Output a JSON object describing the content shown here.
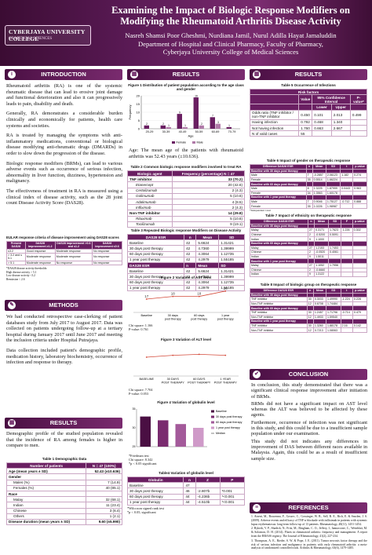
{
  "header": {
    "logo_name": "CYBERJAYA UNIVERSITY COLLEGE",
    "logo_sub": "OF MEDICAL SCIENCES",
    "title": "Examining the Impact of Biologic Response Modifiers on Modifying the Rheumatoid Arthritis Disease Activity",
    "authors": "Nasreh Shamsi Poor Gheshmi, Nurdiana Jamil, Nurul Adilla Hayat Jamaluddin",
    "dept": "Department of Hospital and Clinical Pharmacy, Faculty of Pharmacy,",
    "inst": "Cyberjaya University College of Medical Sciences"
  },
  "sections": {
    "intro": "INTRODUCTION",
    "methods": "METHODS",
    "results": "RESULTS",
    "conclusion": "CONCLUSION",
    "references": "REFERENCES"
  },
  "intro": {
    "p1": "Rheumatoid arthritis (RA) is one of the systemic rheumatic disease that can lead to erosive joint damage and functional deterioration and also it can progressively leads to pain, disability and death.",
    "p2": "Generally, RA demonstrates a considerable burden clinically and economically for patients, health care systems and societies.",
    "p3": "RA is treated by managing the symptoms with anti-inflammatory medications, conventional or biological disease modifying anti-rheumatic drugs (DMARDs) in order to slow down the progression of the disease.",
    "p4": "Biologic response modifiers (BRMs), can lead to various adverse events such as occurrence of serious infection, abnormality in liver function, dizziness, hypertension and malignancy.",
    "p5": "The effectiveness of treatment in RA is measured using a clinical index of disease activity, such as the 28 joint count Disease Activity Score (DAS28).",
    "eular_caption": "EULAR response criteria of disease improvement using DAS28 scores",
    "eular_headers": [
      "Present DAS28",
      "DAS28 improvement ≥1.2",
      "DAS28 improvement >0.6 and ≤1.2",
      "DAS28 improvement ≤0.6"
    ],
    "eular_rows": [
      [
        "≤3.2",
        "Good response",
        "Moderate response",
        "No response"
      ],
      [
        "> 3.2 and ≤ 5.1",
        "Moderate response",
        "Moderate response",
        "No response"
      ],
      [
        "> 5.1",
        "Moderate response",
        "No response",
        "No response"
      ]
    ],
    "eular_notes": [
      "*DAS28 disease activity thresholds:",
      "High disease activity > 5.1",
      "Low disease activity <3.2",
      "Remission < 2.6"
    ]
  },
  "methods": {
    "p1": "We had conducted retrospective case-clerking of patient databases study from July 2017 to August 2017. Data was collected on patients undergoing follow-up at a tertiary hospital during January 2017 until June 2017 and meeting the inclusion criteria under Hospital Putrajaya.",
    "p2": "Data collection included patient's demographic profile, medication history, laboratory biochemistry, occurrence of infection and response to therapy."
  },
  "results_left": {
    "p1": "Demographic profile of the studied population revealed that the incidence of RA among females is higher in compare to men.",
    "table1_caption": "Table 1 Demographic Data",
    "table1_headers": [
      "Number of patients",
      "N = 47 (100%)"
    ],
    "table1_rows": [
      {
        "label": "Age (mean years ± SD)",
        "value": "52.43 (±10.636)",
        "bold": true
      },
      {
        "label": "Gender",
        "value": "",
        "bold": true
      },
      {
        "label": "Males (%)",
        "value": "7 (14.9)",
        "bold": false
      },
      {
        "label": "Females (%)",
        "value": "40 (85.1)",
        "bold": false
      },
      {
        "label": "Race",
        "value": "",
        "bold": true
      },
      {
        "label": "Malay",
        "value": "32 (68.1)",
        "bold": false
      },
      {
        "label": "Indian",
        "value": "11 (23.4)",
        "bold": false
      },
      {
        "label": "Chinese",
        "value": "3 (6.4)",
        "bold": false
      },
      {
        "label": "Others",
        "value": "1 (2.1)",
        "bold": false
      },
      {
        "label": "Disease duration (mean years ± SD)",
        "value": "9.60 (±5.990)",
        "bold": true
      }
    ]
  },
  "fig1": {
    "caption": "Figure 1 Distribution of patient population according to the age class and gender",
    "ylabel": "Frequency",
    "xlabel": "Age",
    "categories": [
      "20-29",
      "30-39",
      "40-49",
      "50-59",
      "60-69",
      "70-79"
    ],
    "legend": [
      "Female",
      "Male"
    ]
  },
  "age_text": "Age: The mean age of the patients with rheumatoid arthritis was 52.43 years (±10.636).",
  "table2": {
    "caption": "Table 2 Common biologic response modifiers involved to treat RA",
    "headers": [
      "Biologic agent",
      "Frequency (percentage) N = 47"
    ],
    "rows": [
      {
        "label": "TNF inhibitor",
        "value": "33 (70.2)",
        "group": true
      },
      {
        "label": "Etanercept",
        "value": "20 (42.6)",
        "group": false
      },
      {
        "label": "Certolizumab",
        "value": "2 (4.3)",
        "group": false
      },
      {
        "label": "Golimumab",
        "value": "5 (10.6)",
        "group": false
      },
      {
        "label": "Adalimumab",
        "value": "4 (8.5)",
        "group": false
      },
      {
        "label": "Infliximab",
        "value": "2 (4.3)",
        "group": false
      },
      {
        "label": "Non-TNF inhibitor",
        "value": "14 (29.8)",
        "group": true
      },
      {
        "label": "Rituximab",
        "value": "5 (10.6)",
        "group": false
      },
      {
        "label": "Tocilizumab",
        "value": "9 (19.1)",
        "group": false
      }
    ]
  },
  "table3": {
    "caption": "Table 3 Repeated Biologic response Modifiers on Disease Activity",
    "esr_headers": [
      "DAS28 ESR",
      "n",
      "Mean",
      "SD"
    ],
    "esr_rows": [
      [
        "Baseline",
        "42",
        "5.6624",
        "1.31421"
      ],
      [
        "30 days post therapy",
        "42",
        "4.7360",
        "1.39999"
      ],
      [
        "60 days post therapy",
        "42",
        "4.3064",
        "1.12735"
      ],
      [
        "1 year post therapy",
        "42",
        "4.2979",
        "1.55185"
      ]
    ],
    "esr_sub_headers": [
      "DAS28 ESR",
      "n",
      "Mean",
      "SD"
    ],
    "esr2_rows": [
      [
        "Baseline",
        "42",
        "5.6624",
        "1.31421"
      ],
      [
        "30 days post therapy",
        "42",
        "4.7360",
        "1.39999"
      ],
      [
        "60 days post therapy",
        "42",
        "4.3064",
        "1.12735"
      ],
      [
        "1 year post therapy",
        "42",
        "4.2979",
        "1.55185"
      ]
    ]
  },
  "fig2": {
    "caption": "Figure 2 Variation of AST level",
    "categories": [
      "Baseline",
      "30 days post therapy",
      "60 days post therapy",
      "1 year post therapy"
    ],
    "labels": [
      "17",
      "18",
      "18",
      "20"
    ],
    "stat1": "Chi square: 1.166",
    "stat2": "P-value: 0.761"
  },
  "fig3": {
    "caption": "Figure 3 Variation of ALT level",
    "categories": [
      "BASELINE",
      "30 DAYS POST THERAPY",
      "60 DAYS POST THERAPY",
      "1 YEAR POST THERAPY"
    ],
    "stat1": "Chi square: 7.704",
    "stat2": "P-value: 0.053"
  },
  "fig4": {
    "caption": "Figure 4 Variation of globulin level",
    "legend": [
      "Baseline",
      "30 days post therapy",
      "60 days post therapy",
      "1 year post therapy",
      "Median"
    ],
    "notes": [
      "*Friedman test",
      "Chi square: 8.342",
      "*p < 0.05 significant"
    ]
  },
  "table4": {
    "caption": "Table4 Variation of globulin level",
    "headers": [
      "Globulin",
      "n",
      "Z",
      "P"
    ],
    "rows": [
      [
        "Baseline",
        "47",
        "",
        ""
      ],
      [
        "30 days post therapy",
        "46",
        "-2.807b",
        "*0.001"
      ],
      [
        "60 days post therapy",
        "44",
        "-4.236b",
        "*<0.001"
      ],
      [
        "1 year post therapy",
        "44",
        "-4.510b",
        "*<0.001"
      ]
    ],
    "notes": [
      "*Wilcoxon signed rank test",
      "*p < 0.05, significant"
    ]
  },
  "table5": {
    "caption": "Table 5 Occurrence of Infections",
    "header_main": "Risk factors",
    "headers": [
      "",
      "Value",
      "95% Confidence Interval",
      "P-value*"
    ],
    "subheaders": [
      "",
      "",
      "Lower",
      "Upper",
      ""
    ],
    "rows": [
      [
        "Odds ratio (TNF inhibitor / non-TNF inhibitor",
        "0.450",
        "0.101",
        "2.013",
        "0.499"
      ],
      [
        "Having infection",
        "0.792",
        "0.468",
        "1.340",
        ""
      ],
      [
        "Not having infection",
        "1.760",
        "0.663",
        "2.667",
        ""
      ],
      [
        "N of valid cases",
        "55",
        "",
        "",
        ""
      ]
    ]
  },
  "table6": {
    "caption": "Table 6 Impact of gender on therapeutic response",
    "headers": [
      "Difference DAS28 ESR",
      "n",
      "Mean",
      "SD",
      "t",
      "p-value"
    ],
    "rows": [
      [
        "Baseline with 30 days post therapy",
        "",
        "",
        "",
        "",
        ""
      ],
      [
        "Male",
        "7",
        "-0.2857",
        "2.06123",
        "1.182",
        "0.274"
      ],
      [
        "Female",
        "35",
        "0.5514",
        "1.66224",
        "",
        ""
      ],
      [
        "Baseline with 60 days post therapy",
        "",
        "",
        "",
        "",
        ""
      ],
      [
        "Male",
        "8",
        "1.3225",
        "1.87999",
        "0.0443",
        "0.963"
      ],
      [
        "Female",
        "34",
        "1.3563",
        "1.60178",
        "",
        ""
      ],
      [
        "Baseline with 1 year post therapy",
        "",
        "",
        "",
        "",
        ""
      ],
      [
        "Male",
        "7",
        "0.9046",
        "1.75127",
        "-0.712",
        "0.888"
      ],
      [
        "Female",
        "35",
        "1.0226",
        "1.98987",
        "",
        ""
      ]
    ],
    "note": "*Independent t-test"
  },
  "table7": {
    "caption": "Table 7 Impact of ethnicity on therapeutic response",
    "headers": [
      "Difference DAS28 ESR",
      "n",
      "Mean",
      "SD",
      "F",
      "p-value"
    ],
    "rows": [
      [
        "Baseline with 30 days post therapy",
        "",
        "",
        "",
        "",
        ""
      ],
      [
        "Malay",
        "27",
        "0.3171",
        "1.7623",
        "1.226",
        "0.302"
      ],
      [
        "Chinese",
        "2",
        "-0.5200",
        "0.5091",
        "",
        ""
      ],
      [
        "Indian",
        "9",
        "1.1000",
        "",
        "",
        ""
      ],
      [
        "Baseline with 60 days post therapy",
        "",
        "",
        "",
        "",
        ""
      ],
      [
        "Malay",
        "27",
        "1.2153",
        "1.7453",
        "",
        ""
      ],
      [
        "Chinese",
        "2",
        "-0.0520",
        "0.4061",
        "",
        ""
      ],
      [
        "Indian",
        "9",
        "1.5011",
        "",
        "",
        ""
      ],
      [
        "Baseline with 1 year post therapy",
        "",
        "",
        "",
        "",
        ""
      ],
      [
        "Malay",
        "27",
        "1.1052",
        "1.7956",
        "",
        ""
      ],
      [
        "Chinese",
        "2",
        "-0.6660",
        "",
        "",
        ""
      ],
      [
        "Indian",
        "9",
        "1.3122",
        "",
        "",
        ""
      ]
    ]
  },
  "table8": {
    "caption": "Table 8 Impact of biologic group on therapeutic response",
    "headers": [
      "Difference DAS28 ESR",
      "n",
      "Mean",
      "SD",
      "t",
      "p-value"
    ],
    "rows": [
      [
        "Baseline with 30 days post therapy",
        "",
        "",
        "",
        "",
        ""
      ],
      [
        "TNF inhibitor",
        "30",
        "0.3033",
        "1.49990",
        "-1.224",
        "0.228"
      ],
      [
        "Non-TNF inhibitor",
        "12",
        "0.6708",
        "1.74484",
        "",
        ""
      ],
      [
        "Baseline with 60 days post therapy",
        "",
        "",
        "",
        "",
        ""
      ],
      [
        "TNF inhibitor",
        "30",
        "1.2457",
        "1.71796",
        "-0.714",
        "0.479"
      ],
      [
        "Non-TNF inhibitor",
        "12",
        "1.4933",
        "1.59540",
        "",
        ""
      ],
      [
        "Baseline with 1 year post therapy",
        "",
        "",
        "",
        "",
        ""
      ],
      [
        "TNF inhibitor",
        "30",
        "1.3260",
        "1.88178",
        "2.16",
        "0.142"
      ],
      [
        "Non-TNF inhibitor",
        "12",
        "0.7213",
        "1.08063",
        "",
        ""
      ]
    ]
  },
  "conclusion": {
    "p1": "In conclusion, this study demonstrated that there was a significant clinical response improvement after initiation of BRMs.",
    "p2": "BRMs did not have a significant impact on AST level whereas the ALT was believed to be affected by these agents.",
    "p3": "Furthermore, occurrence of infection was not significant in this study, and this could be due to a insufficient sample population under our examination.",
    "p4": "This study did not indicates any differences in improvement of DAS between different races available in Malaysia. Again, this could be as a result of insufficient sample size."
  },
  "references": [
    "1. Atzeni, M., Boucenna, F., Gossec, C., Gossinger, W. B., Sell, R. E., Rich, E. & Smolen, J. S. (2009). Adverse events and efficacy of TNF-α blockade with infliximab in patients with systemic lupus erythematosus: long-term follow-up of 13 patients. Rheumatology, 48(11), 1451-1454.",
    "2. Bykerk, V. P., Shadick, N., Frits, M., Bingham, C. O., Jeffery, I., Iannaccone, C., Weinblatt, M. & Solomon, D. H. (2014). Flares in rheumatoid arthritis: frequency and management. A report from the BRASS registry. The Journal of Rheumatology, 41(2), 227-234.",
    "3. Thompson, A. E., Rieder, S. W. & Pope, J. E. (2011). Tumor necrosis factor therapy and the risk of serious infection and malignancy in patients with early rheumatoid arthritis: a meta-analysis of randomized controlled trials. Arthritis & Rheumatology, 63(6), 1479-1485."
  ],
  "chart_data": [
    {
      "type": "bar",
      "title": "Figure 1 Distribution of patient population according to the age class and gender",
      "xlabel": "Age",
      "ylabel": "Frequency",
      "categories": [
        "20-29",
        "30-39",
        "40-49",
        "50-59",
        "60-69",
        "70-79"
      ],
      "series": [
        {
          "name": "Female",
          "values": [
            2,
            2,
            9,
            19,
            7,
            1
          ]
        },
        {
          "name": "Male",
          "values": [
            0,
            1,
            1,
            2,
            3,
            0
          ]
        }
      ],
      "ylim": [
        0,
        20
      ],
      "legend": "bottom"
    },
    {
      "type": "line",
      "title": "Figure 2 Variation of AST level",
      "categories": [
        "Baseline",
        "30 days post therapy",
        "60 days post therapy",
        "1 year post therapy"
      ],
      "values": [
        17,
        18,
        18,
        20
      ],
      "ylim": [
        12,
        22
      ]
    },
    {
      "type": "line",
      "title": "Figure 3 Variation of ALT level",
      "categories": [
        "BASELINE",
        "30 DAYS POST THERAPY",
        "60 DAYS POST THERAPY",
        "1 YEAR POST THERAPY"
      ],
      "values": [
        20,
        22,
        23,
        22
      ],
      "ylim": [
        0,
        30
      ]
    },
    {
      "type": "bar",
      "title": "Figure 4 Variation of globulin level",
      "categories": [
        "Baseline",
        "30 days post therapy",
        "60 days post therapy",
        "1 year post therapy"
      ],
      "values": [
        33,
        32,
        31,
        30
      ],
      "ylim": [
        25,
        35
      ]
    }
  ],
  "colors": {
    "banner": "#6a1f62",
    "female": "#6a1f62",
    "male": "#b07aa8",
    "line": "#d44a3a"
  }
}
